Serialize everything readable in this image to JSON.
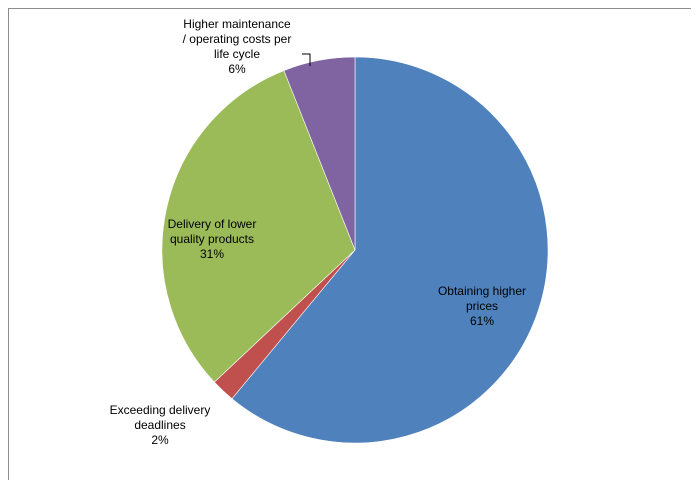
{
  "chart_data": {
    "type": "pie",
    "start_angle_deg": 0,
    "direction": "clockwise",
    "title": "",
    "slices": [
      {
        "label": [
          "Obtaining higher",
          "prices"
        ],
        "percent_label": "61%",
        "value": 61,
        "color": "#4F81BD"
      },
      {
        "label": [
          "Exceeding delivery",
          "deadlines"
        ],
        "percent_label": "2%",
        "value": 2,
        "color": "#C0504D"
      },
      {
        "label": [
          "Delivery of lower",
          "quality products"
        ],
        "percent_label": "31%",
        "value": 31,
        "color": "#9BBB59"
      },
      {
        "label": [
          "Higher maintenance",
          "/ operating costs per",
          "life cycle"
        ],
        "percent_label": "6%",
        "value": 6,
        "color": "#8064A2"
      }
    ]
  }
}
